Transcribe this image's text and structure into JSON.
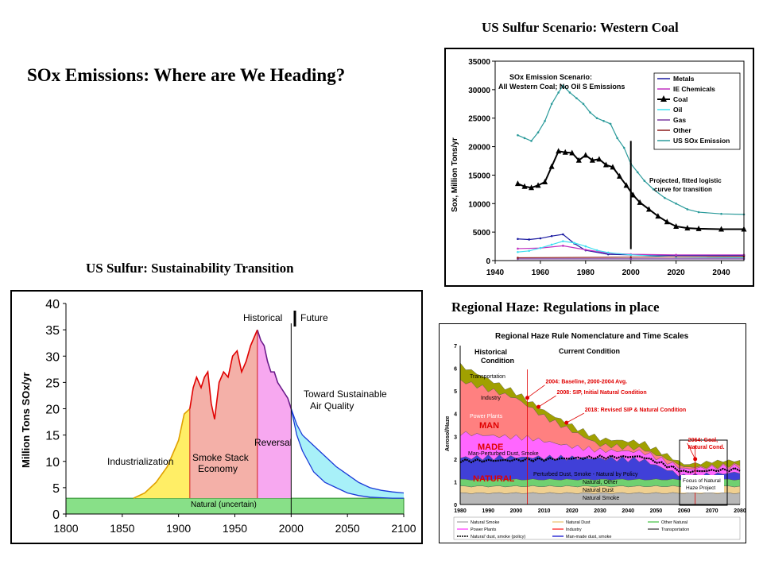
{
  "slide": {
    "title": "SOx Emissions: Where are We Heading?",
    "caption_western": "US Sulfur Scenario: Western  Coal",
    "caption_sustainability": "US Sulfur: Sustainability Transition",
    "caption_haze": "Regional Haze:  Regulations in place"
  },
  "chart_data": [
    {
      "id": "western-coal",
      "type": "line",
      "ylabel": "Sox, Million Tons/yr",
      "xlim": [
        1940,
        2050
      ],
      "ylim": [
        0,
        35000
      ],
      "x_ticks": [
        1940,
        1960,
        1980,
        2000,
        2020,
        2040
      ],
      "y_ticks": [
        0,
        5000,
        10000,
        15000,
        20000,
        25000,
        30000,
        35000
      ],
      "annotation_scenario": [
        "SOx Emission Scenario:",
        "All Western Coal; No Oil S Emissions"
      ],
      "annotation_projection": [
        "Projected, fitted logistic",
        "curve for transition"
      ],
      "divider_x": 2000,
      "legend_position": "top-right",
      "series": [
        {
          "name": "Metals",
          "color": "#1a1aa0",
          "x": [
            1950,
            1955,
            1960,
            1965,
            1970,
            1975,
            1980,
            1990,
            2000,
            2020,
            2050
          ],
          "y": [
            3800,
            3700,
            3900,
            4300,
            4600,
            3000,
            1800,
            1100,
            1000,
            900,
            900
          ]
        },
        {
          "name": "IE Chemicals",
          "color": "#c030c0",
          "x": [
            1950,
            1960,
            1970,
            1980,
            1990,
            2000,
            2020,
            2050
          ],
          "y": [
            2100,
            2200,
            2600,
            1900,
            1300,
            1100,
            1000,
            1000
          ]
        },
        {
          "name": "Coal",
          "color": "#000000",
          "x": [
            1950,
            1953,
            1956,
            1959,
            1962,
            1965,
            1968,
            1971,
            1974,
            1977,
            1980,
            1983,
            1986,
            1989,
            1992,
            1995,
            1998,
            2001,
            2004,
            2008,
            2012,
            2016,
            2020,
            2025,
            2030,
            2040,
            2050
          ],
          "y": [
            13500,
            13000,
            12800,
            13200,
            13800,
            16500,
            19200,
            19000,
            18900,
            17600,
            18500,
            17600,
            17800,
            16800,
            16400,
            14800,
            13200,
            11500,
            10200,
            9000,
            7800,
            6800,
            6000,
            5700,
            5600,
            5500,
            5500
          ]
        },
        {
          "name": "Oil",
          "color": "#40e0f0",
          "x": [
            1950,
            1955,
            1960,
            1965,
            1970,
            1975,
            1980,
            1985,
            1990,
            2000,
            2020,
            2050
          ],
          "y": [
            1500,
            1700,
            2200,
            2800,
            3400,
            3100,
            2500,
            1800,
            1400,
            1000,
            600,
            500
          ]
        },
        {
          "name": "Gas",
          "color": "#7a3aa0",
          "x": [
            1950,
            2000,
            2050
          ],
          "y": [
            300,
            300,
            300
          ]
        },
        {
          "name": "Other",
          "color": "#8b1a1a",
          "x": [
            1950,
            2000,
            2050
          ],
          "y": [
            500,
            600,
            700
          ]
        },
        {
          "name": "US SOx Emission",
          "color": "#2a9a9a",
          "x": [
            1950,
            1953,
            1956,
            1959,
            1962,
            1965,
            1968,
            1970,
            1973,
            1976,
            1979,
            1982,
            1985,
            1988,
            1991,
            1994,
            1997,
            2000,
            2003,
            2006,
            2010,
            2015,
            2020,
            2025,
            2030,
            2040,
            2050
          ],
          "y": [
            22000,
            21500,
            21000,
            22500,
            24500,
            27500,
            29500,
            30700,
            29500,
            28500,
            27500,
            26000,
            25000,
            24500,
            24000,
            21500,
            19800,
            17000,
            15500,
            14000,
            12500,
            11000,
            10000,
            9000,
            8500,
            8200,
            8100
          ]
        }
      ]
    },
    {
      "id": "sustainability-transition",
      "type": "area",
      "ylabel": "Million Tons SOx/yr",
      "xlim": [
        1800,
        2100
      ],
      "ylim": [
        0,
        40
      ],
      "x_ticks": [
        1800,
        1850,
        1900,
        1950,
        2000,
        2050,
        2100
      ],
      "y_ticks": [
        0,
        5,
        10,
        15,
        20,
        25,
        30,
        35,
        40
      ],
      "natural_band": [
        0,
        3
      ],
      "natural_label": "Natural (uncertain)",
      "divider_x": 2000,
      "labels": {
        "historical": "Historical",
        "future": "Future",
        "industrialization": "Industrialization",
        "smoke_stack": "Smoke Stack",
        "economy": "Economy",
        "reversal": "Reversal",
        "sustainable_1": "Toward Sustainable",
        "sustainable_2": "Air Quality"
      },
      "series": [
        {
          "name": "Industrialization",
          "color": "#ffee66",
          "x": [
            1860,
            1870,
            1880,
            1890,
            1900,
            1905,
            1910
          ],
          "y": [
            3,
            4,
            6,
            9,
            14,
            19,
            20
          ]
        },
        {
          "name": "Smoke Stack Economy",
          "color": "#f4b0a8",
          "x": [
            1910,
            1913,
            1916,
            1920,
            1923,
            1926,
            1929,
            1932,
            1936,
            1940,
            1944,
            1948,
            1952,
            1956,
            1960,
            1964,
            1970
          ],
          "y": [
            20,
            24,
            26,
            24,
            26,
            27,
            21,
            18,
            25,
            27,
            26,
            30,
            31,
            27,
            29,
            32,
            35
          ]
        },
        {
          "name": "Reversal",
          "color": "#f7a8f0",
          "x": [
            1970,
            1973,
            1976,
            1979,
            1982,
            1985,
            1988,
            1991,
            1994,
            1997,
            2000
          ],
          "y": [
            35,
            33,
            32,
            29,
            27,
            27,
            25,
            24,
            23,
            22,
            20
          ]
        },
        {
          "name": "Toward Sustainable Air Quality",
          "color": "#a8f0f8",
          "x": [
            2000,
            2005,
            2010,
            2015,
            2020,
            2030,
            2040,
            2050,
            2060,
            2070,
            2080,
            2090,
            2100
          ],
          "y_low": [
            20,
            15,
            12,
            10,
            8,
            6,
            5,
            4,
            3.5,
            3.2,
            3.1,
            3.0,
            3.0
          ],
          "y_high": [
            20,
            17,
            15,
            14,
            13,
            11,
            9,
            7.5,
            6,
            5,
            4.5,
            4.2,
            4.0
          ]
        }
      ]
    },
    {
      "id": "regional-haze",
      "type": "area",
      "title": "Regional Haze Rule Nomenclature and Time Scales",
      "ylabel": "Aerosol/Haze",
      "xlim": [
        1980,
        2080
      ],
      "ylim": [
        0,
        7
      ],
      "x_ticks": [
        1980,
        1990,
        2000,
        2010,
        2020,
        2030,
        2040,
        2050,
        2060,
        2070,
        2080
      ],
      "y_ticks": [
        0,
        1,
        2,
        3,
        4,
        5,
        6,
        7
      ],
      "labels": {
        "historical": [
          "Historical",
          "Condition"
        ],
        "current": "Current Condition",
        "transportation": "Transportation",
        "industry": "Industry",
        "power_plants": "Power Plants",
        "man": "MAN",
        "made": "MADE",
        "man_perturbed": "Man-Perturbed Dust, Smoke",
        "natural": "NATURAL",
        "perturbed": "Perturbed Dust, Smoke - Natural by Policy",
        "natural_other": "Natural, Other",
        "natural_dust": "Natural Dust",
        "natural_smoke": "Natural Smoke",
        "focus": [
          "Focus of Natural",
          "Haze Project"
        ]
      },
      "milestones": [
        {
          "year": 2004,
          "value": 4.7,
          "label": "2004: Baseline, 2000-2004 Avg."
        },
        {
          "year": 2008,
          "value": 4.3,
          "label": "2008: SIP, Initial Natural Condition"
        },
        {
          "year": 2018,
          "value": 3.6,
          "label": "2018: Revised SIP & Natural Condition"
        },
        {
          "year": 2064,
          "value": 2.0,
          "label": [
            "2064: Goal,",
            "Natural Cond."
          ]
        }
      ],
      "legend": [
        "Natural Smoke",
        "Natural Dust",
        "Other Natural",
        "Power Plants",
        "Industry",
        "Transportation",
        "Natural' dust, smoke (policy)",
        "Man-made dust, smoke"
      ],
      "series": [
        {
          "name": "Natural Smoke",
          "color": "#b8b8b8"
        },
        {
          "name": "Natural Dust",
          "color": "#f0d090"
        },
        {
          "name": "Other Natural",
          "color": "#70d070"
        },
        {
          "name": "Man-made dust, smoke",
          "color": "#4040d8"
        },
        {
          "name": "Power Plants",
          "color": "#ff66ff"
        },
        {
          "name": "Industry",
          "color": "#ff8080"
        },
        {
          "name": "Transportation",
          "color": "#a0a000"
        }
      ]
    }
  ]
}
